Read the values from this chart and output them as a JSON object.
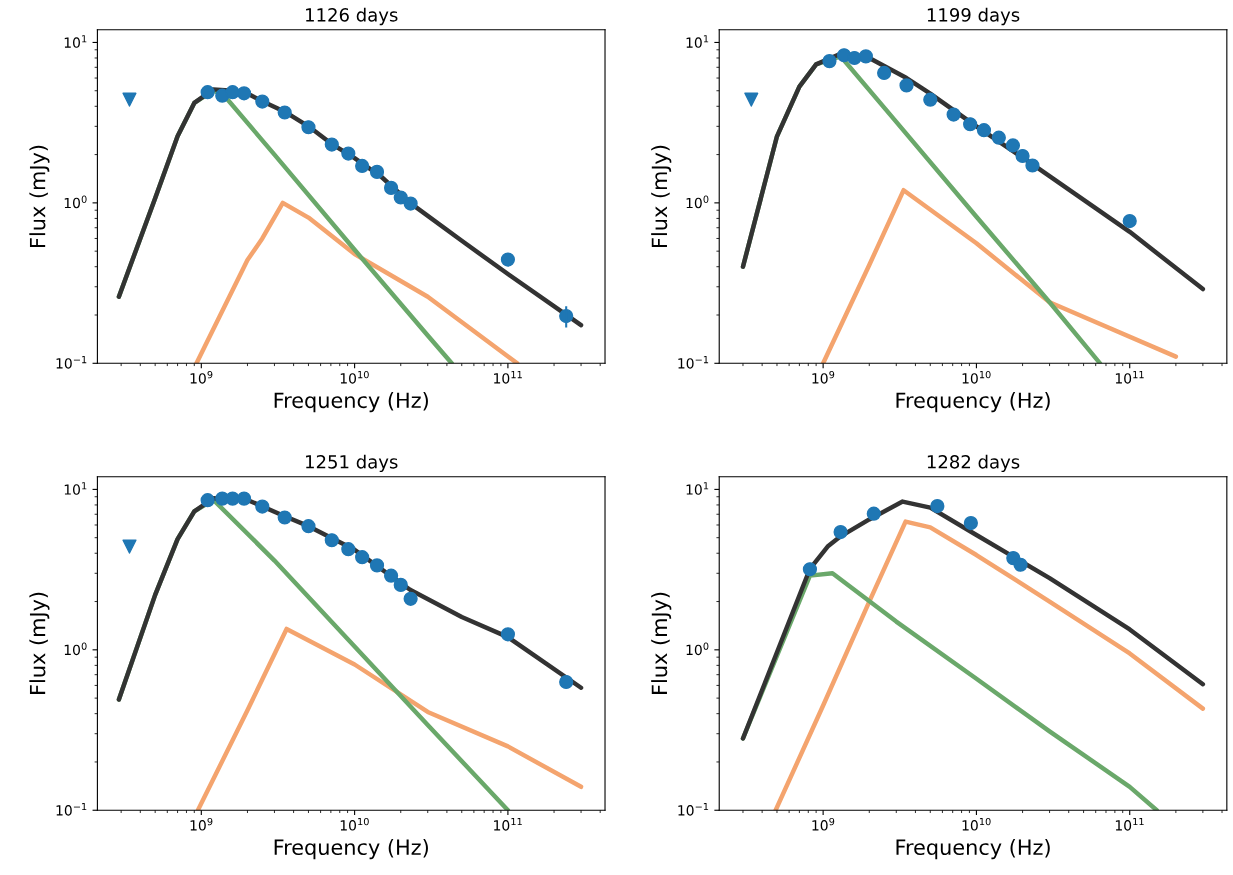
{
  "chart_data": [
    {
      "type": "line",
      "title": "1126 days",
      "xlabel": "Frequency (Hz)",
      "ylabel": "Flux (mJy)",
      "log": "xy",
      "xlim": [
        210000000.0,
        430000000000.0
      ],
      "ylim": [
        0.1,
        12
      ],
      "xticks": [
        {
          "value": 1000000000.0,
          "label": "10$^{9}$"
        },
        {
          "value": 10000000000.0,
          "label": "10$^{10}$"
        },
        {
          "value": 100000000000.0,
          "label": "10$^{11}$"
        }
      ],
      "yticks": [
        {
          "value": 0.1,
          "label": "10$^{−1}$"
        },
        {
          "value": 1,
          "label": "10$^{0}$"
        },
        {
          "value": 10,
          "label": "10$^{1}$"
        }
      ],
      "series": [
        {
          "color": "#f4a46e",
          "x": [
            930000000.0,
            2000000000.0,
            2500000000.0,
            3400000000.0,
            5000000000.0,
            10000000000.0,
            30000000000.0,
            115000000000.0
          ],
          "values": [
            0.1,
            0.44,
            0.6,
            1.0,
            0.81,
            0.48,
            0.26,
            0.1
          ]
        },
        {
          "color": "#6aa86a",
          "x": [
            290000000.0,
            500000000.0,
            700000000.0,
            900000000.0,
            1200000000.0,
            1400000000.0,
            3000000000.0,
            10000000000.0,
            30000000000.0,
            43000000000.0
          ],
          "values": [
            0.26,
            1.07,
            2.6,
            4.2,
            5.0,
            4.7,
            2.0,
            0.51,
            0.149,
            0.1
          ]
        },
        {
          "color": "#333333",
          "x": [
            290000000.0,
            500000000.0,
            700000000.0,
            900000000.0,
            1200000000.0,
            1600000000.0,
            2000000000.0,
            2500000000.0,
            3500000000.0,
            5000000000.0,
            7000000000.0,
            10000000000.0,
            15000000000.0,
            23000000000.0,
            50000000000.0,
            100000000000.0,
            300000000000.0
          ],
          "values": [
            0.26,
            1.07,
            2.6,
            4.2,
            5.1,
            5.0,
            4.8,
            4.3,
            3.7,
            3.0,
            2.35,
            1.9,
            1.45,
            1.0,
            0.58,
            0.36,
            0.173
          ]
        },
        {
          "type": "scatter",
          "color": "#1f77b4",
          "marker": "triangle",
          "x": [
            340000000.0
          ],
          "values": [
            4.4
          ]
        },
        {
          "type": "scatter",
          "color": "#1f77b4",
          "marker": "circle",
          "x": [
            1100000000.0,
            1370000000.0,
            1600000000.0,
            1900000000.0,
            2500000000.0,
            3500000000.0,
            5000000000.0,
            7100000000.0,
            9100000000.0,
            11200000000.0,
            14000000000.0,
            17300000000.0,
            20000000000.0,
            23200000000.0,
            100000000000.0,
            240000000000.0
          ],
          "values": [
            4.9,
            4.66,
            4.9,
            4.82,
            4.28,
            3.66,
            2.96,
            2.31,
            2.03,
            1.7,
            1.56,
            1.24,
            1.08,
            0.99,
            0.443,
            0.197
          ],
          "errors": [
            null,
            null,
            null,
            null,
            null,
            null,
            null,
            null,
            null,
            null,
            null,
            null,
            null,
            null,
            null,
            0.03
          ]
        }
      ]
    },
    {
      "type": "line",
      "title": "1199 days",
      "xlabel": "Frequency (Hz)",
      "ylabel": "Flux (mJy)",
      "log": "xy",
      "xlim": [
        210000000.0,
        430000000000.0
      ],
      "ylim": [
        0.1,
        12
      ],
      "xticks": [
        {
          "value": 1000000000.0,
          "label": "10$^{9}$"
        },
        {
          "value": 10000000000.0,
          "label": "10$^{10}$"
        },
        {
          "value": 100000000000.0,
          "label": "10$^{11}$"
        }
      ],
      "yticks": [
        {
          "value": 0.1,
          "label": "10$^{−1}$"
        },
        {
          "value": 1,
          "label": "10$^{0}$"
        },
        {
          "value": 10,
          "label": "10$^{1}$"
        }
      ],
      "series": [
        {
          "color": "#f4a46e",
          "x": [
            1000000000.0,
            2000000000.0,
            3350000000.0,
            10000000000.0,
            30000000000.0,
            200000000000.0
          ],
          "values": [
            0.1,
            0.41,
            1.2,
            0.56,
            0.24,
            0.11
          ]
        },
        {
          "color": "#6aa86a",
          "x": [
            300000000.0,
            500000000.0,
            700000000.0,
            900000000.0,
            1300000000.0,
            3000000000.0,
            10000000000.0,
            30000000000.0,
            64000000000.0
          ],
          "values": [
            0.4,
            2.6,
            5.3,
            7.3,
            8.2,
            3.2,
            0.82,
            0.24,
            0.1
          ]
        },
        {
          "color": "#333333",
          "x": [
            300000000.0,
            500000000.0,
            700000000.0,
            900000000.0,
            1300000000.0,
            2000000000.0,
            3500000000.0,
            5000000000.0,
            10000000000.0,
            23000000000.0,
            100000000000.0,
            300000000000.0
          ],
          "values": [
            0.4,
            2.6,
            5.3,
            7.3,
            8.5,
            8.0,
            6.0,
            4.8,
            3.0,
            1.75,
            0.66,
            0.29
          ]
        },
        {
          "type": "scatter",
          "color": "#1f77b4",
          "marker": "triangle",
          "x": [
            340000000.0
          ],
          "values": [
            4.4
          ]
        },
        {
          "type": "scatter",
          "color": "#1f77b4",
          "marker": "circle",
          "x": [
            1100000000.0,
            1370000000.0,
            1600000000.0,
            1900000000.0,
            2500000000.0,
            3500000000.0,
            5000000000.0,
            7100000000.0,
            9100000000.0,
            11200000000.0,
            14000000000.0,
            17300000000.0,
            20000000000.0,
            23200000000.0,
            100000000000.0
          ],
          "values": [
            7.65,
            8.32,
            8.0,
            8.19,
            6.46,
            5.4,
            4.4,
            3.55,
            3.09,
            2.84,
            2.55,
            2.28,
            1.96,
            1.71,
            0.77
          ]
        }
      ]
    },
    {
      "type": "line",
      "title": "1251 days",
      "xlabel": "Frequency (Hz)",
      "ylabel": "Flux (mJy)",
      "log": "xy",
      "xlim": [
        210000000.0,
        430000000000.0
      ],
      "ylim": [
        0.1,
        12
      ],
      "xticks": [
        {
          "value": 1000000000.0,
          "label": "10$^{9}$"
        },
        {
          "value": 10000000000.0,
          "label": "10$^{10}$"
        },
        {
          "value": 100000000000.0,
          "label": "10$^{11}$"
        }
      ],
      "yticks": [
        {
          "value": 0.1,
          "label": "10$^{−1}$"
        },
        {
          "value": 1,
          "label": "10$^{0}$"
        },
        {
          "value": 10,
          "label": "10$^{1}$"
        }
      ],
      "series": [
        {
          "color": "#f4a46e",
          "x": [
            950000000.0,
            2000000000.0,
            3600000000.0,
            10000000000.0,
            30000000000.0,
            100000000000.0,
            300000000000.0
          ],
          "values": [
            0.1,
            0.42,
            1.35,
            0.81,
            0.41,
            0.25,
            0.14
          ]
        },
        {
          "color": "#6aa86a",
          "x": [
            290000000.0,
            500000000.0,
            700000000.0,
            900000000.0,
            1200000000.0,
            3000000000.0,
            10000000000.0,
            30000000000.0,
            100000000000.0
          ],
          "values": [
            0.49,
            2.2,
            4.9,
            7.3,
            8.6,
            3.6,
            1.05,
            0.34,
            0.1
          ]
        },
        {
          "color": "#333333",
          "x": [
            290000000.0,
            500000000.0,
            700000000.0,
            900000000.0,
            1200000000.0,
            2000000000.0,
            3500000000.0,
            5000000000.0,
            10000000000.0,
            23000000000.0,
            50000000000.0,
            100000000000.0,
            300000000000.0
          ],
          "values": [
            0.49,
            2.2,
            4.9,
            7.3,
            8.8,
            8.6,
            6.8,
            5.9,
            4.2,
            2.37,
            1.6,
            1.2,
            0.58
          ]
        },
        {
          "type": "scatter",
          "color": "#1f77b4",
          "marker": "triangle",
          "x": [
            340000000.0
          ],
          "values": [
            4.4
          ]
        },
        {
          "type": "scatter",
          "color": "#1f77b4",
          "marker": "circle",
          "x": [
            1100000000.0,
            1370000000.0,
            1600000000.0,
            1900000000.0,
            2500000000.0,
            3500000000.0,
            5000000000.0,
            7100000000.0,
            9100000000.0,
            11200000000.0,
            14000000000.0,
            17300000000.0,
            20000000000.0,
            23200000000.0,
            100000000000.0,
            240000000000.0
          ],
          "values": [
            8.57,
            8.76,
            8.76,
            8.76,
            7.82,
            6.68,
            5.9,
            4.82,
            4.24,
            3.78,
            3.36,
            2.9,
            2.54,
            2.08,
            1.25,
            0.63
          ]
        }
      ]
    },
    {
      "type": "line",
      "title": "1282 days",
      "xlabel": "Frequency (Hz)",
      "ylabel": "Flux (mJy)",
      "log": "xy",
      "xlim": [
        210000000.0,
        430000000000.0
      ],
      "ylim": [
        0.1,
        12
      ],
      "xticks": [
        {
          "value": 1000000000.0,
          "label": "10$^{9}$"
        },
        {
          "value": 10000000000.0,
          "label": "10$^{10}$"
        },
        {
          "value": 100000000000.0,
          "label": "10$^{11}$"
        }
      ],
      "yticks": [
        {
          "value": 0.1,
          "label": "10$^{−1}$"
        },
        {
          "value": 1,
          "label": "10$^{0}$"
        },
        {
          "value": 10,
          "label": "10$^{1}$"
        }
      ],
      "series": [
        {
          "color": "#f4a46e",
          "x": [
            490000000.0,
            1000000000.0,
            2000000000.0,
            3450000000.0,
            5000000000.0,
            10000000000.0,
            30000000000.0,
            100000000000.0,
            300000000000.0
          ],
          "values": [
            0.1,
            0.45,
            2.0,
            6.3,
            5.8,
            3.9,
            2.0,
            0.95,
            0.43
          ]
        },
        {
          "color": "#6aa86a",
          "x": [
            300000000.0,
            820000000.0,
            1150000000.0,
            3000000000.0,
            10000000000.0,
            30000000000.0,
            100000000000.0,
            150000000000.0
          ],
          "values": [
            0.28,
            2.9,
            3.0,
            1.5,
            0.66,
            0.31,
            0.14,
            0.1
          ]
        },
        {
          "color": "#333333",
          "x": [
            300000000.0,
            820000000.0,
            1070000000.0,
            1300000000.0,
            2000000000.0,
            3300000000.0,
            5000000000.0,
            10000000000.0,
            30000000000.0,
            100000000000.0,
            300000000000.0
          ],
          "values": [
            0.28,
            3.2,
            4.4,
            5.1,
            6.5,
            8.4,
            7.7,
            5.2,
            2.8,
            1.34,
            0.61
          ]
        },
        {
          "type": "scatter",
          "color": "#1f77b4",
          "marker": "circle",
          "x": [
            820000000.0,
            1300000000.0,
            2140000000.0,
            5560000000.0,
            9200000000.0,
            17400000000.0,
            19400000000.0
          ],
          "values": [
            3.18,
            5.42,
            7.06,
            7.87,
            6.17,
            3.73,
            3.39
          ]
        }
      ]
    }
  ]
}
